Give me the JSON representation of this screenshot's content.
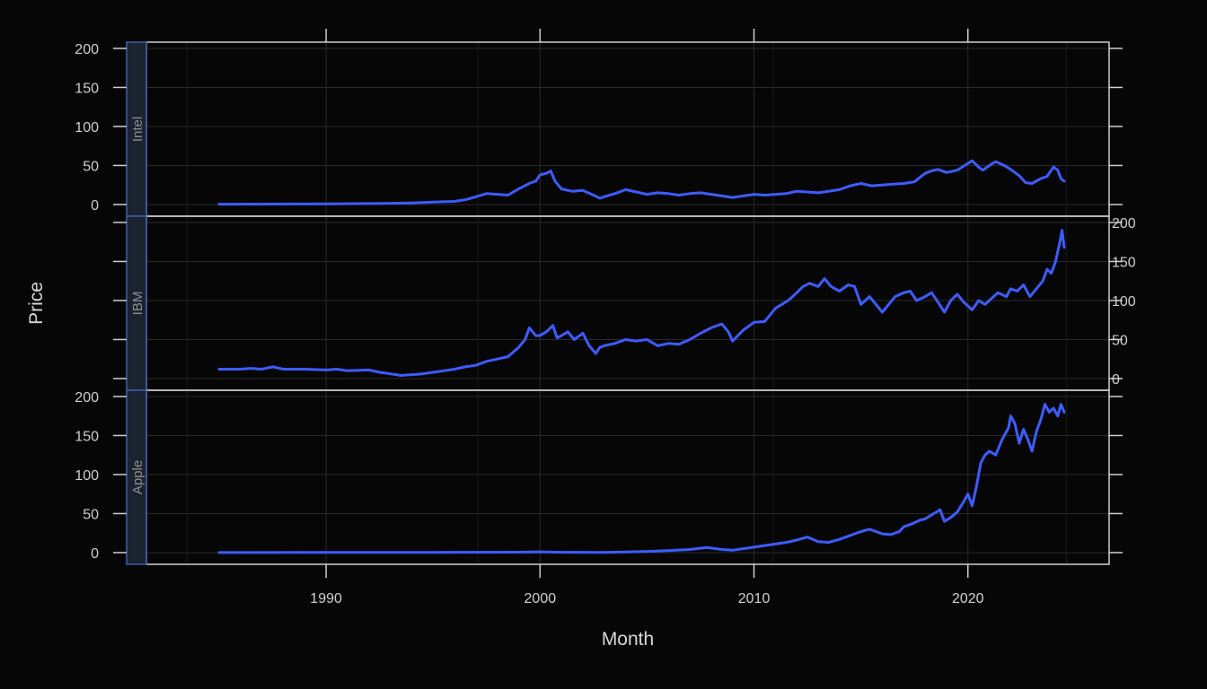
{
  "chart_data": {
    "type": "line",
    "xlabel": "Month",
    "ylabel": "Price",
    "x_ticks": [
      1990,
      2000,
      2010,
      2020
    ],
    "y_ticks": [
      0,
      50,
      100,
      150,
      200
    ],
    "xlim": [
      1981.6,
      2026.6
    ],
    "ylim": [
      -15,
      208
    ],
    "grid": true,
    "colors": {
      "line": "#3d5cff",
      "strip_fill": "#1b2330",
      "strip_border": "#3b5fa8",
      "panel_border": "#cfcfcf",
      "grid": "#2a2a2a",
      "background": "#060606"
    },
    "panels": [
      {
        "name": "Intel",
        "points": [
          [
            1985.0,
            0.4
          ],
          [
            1987.0,
            0.5
          ],
          [
            1990.0,
            0.8
          ],
          [
            1992.0,
            1.2
          ],
          [
            1993.0,
            1.5
          ],
          [
            1994.0,
            2.0
          ],
          [
            1995.0,
            3.0
          ],
          [
            1996.0,
            4.0
          ],
          [
            1996.5,
            6.0
          ],
          [
            1997.0,
            10.0
          ],
          [
            1997.5,
            14.0
          ],
          [
            1998.0,
            13.0
          ],
          [
            1998.5,
            12.0
          ],
          [
            1999.0,
            20.0
          ],
          [
            1999.5,
            27.0
          ],
          [
            1999.8,
            30.0
          ],
          [
            2000.0,
            38.0
          ],
          [
            2000.3,
            40.0
          ],
          [
            2000.5,
            43.0
          ],
          [
            2000.7,
            30.0
          ],
          [
            2001.0,
            20.0
          ],
          [
            2001.5,
            17.0
          ],
          [
            2002.0,
            18.0
          ],
          [
            2002.5,
            12.0
          ],
          [
            2002.8,
            8.0
          ],
          [
            2003.0,
            10.0
          ],
          [
            2003.5,
            14.0
          ],
          [
            2004.0,
            19.0
          ],
          [
            2004.5,
            16.0
          ],
          [
            2005.0,
            13.0
          ],
          [
            2005.5,
            15.0
          ],
          [
            2006.0,
            14.0
          ],
          [
            2006.5,
            12.0
          ],
          [
            2007.0,
            14.0
          ],
          [
            2007.5,
            15.0
          ],
          [
            2008.0,
            13.0
          ],
          [
            2008.5,
            11.0
          ],
          [
            2009.0,
            9.0
          ],
          [
            2009.5,
            11.0
          ],
          [
            2010.0,
            13.0
          ],
          [
            2010.5,
            12.0
          ],
          [
            2011.0,
            13.0
          ],
          [
            2011.5,
            14.0
          ],
          [
            2012.0,
            17.0
          ],
          [
            2012.5,
            16.0
          ],
          [
            2013.0,
            15.0
          ],
          [
            2013.5,
            17.0
          ],
          [
            2014.0,
            19.0
          ],
          [
            2014.5,
            24.0
          ],
          [
            2015.0,
            27.0
          ],
          [
            2015.5,
            24.0
          ],
          [
            2016.0,
            25.0
          ],
          [
            2016.5,
            26.0
          ],
          [
            2017.0,
            27.0
          ],
          [
            2017.5,
            29.0
          ],
          [
            2018.0,
            40.0
          ],
          [
            2018.3,
            43.0
          ],
          [
            2018.6,
            45.0
          ],
          [
            2019.0,
            41.0
          ],
          [
            2019.5,
            44.0
          ],
          [
            2019.9,
            51.0
          ],
          [
            2020.2,
            56.0
          ],
          [
            2020.5,
            48.0
          ],
          [
            2020.7,
            44.0
          ],
          [
            2021.0,
            50.0
          ],
          [
            2021.3,
            55.0
          ],
          [
            2021.7,
            50.0
          ],
          [
            2022.0,
            45.0
          ],
          [
            2022.4,
            37.0
          ],
          [
            2022.7,
            28.0
          ],
          [
            2023.0,
            27.0
          ],
          [
            2023.4,
            33.0
          ],
          [
            2023.7,
            36.0
          ],
          [
            2024.0,
            48.0
          ],
          [
            2024.2,
            44.0
          ],
          [
            2024.35,
            33.0
          ],
          [
            2024.5,
            30.0
          ]
        ]
      },
      {
        "name": "IBM",
        "points": [
          [
            1985.0,
            12.0
          ],
          [
            1986.0,
            12.0
          ],
          [
            1986.5,
            13.0
          ],
          [
            1987.0,
            12.0
          ],
          [
            1987.5,
            15.0
          ],
          [
            1988.0,
            12.0
          ],
          [
            1989.0,
            12.0
          ],
          [
            1990.0,
            11.0
          ],
          [
            1990.5,
            12.0
          ],
          [
            1991.0,
            10.0
          ],
          [
            1992.0,
            11.0
          ],
          [
            1992.5,
            8.0
          ],
          [
            1993.0,
            6.0
          ],
          [
            1993.5,
            4.0
          ],
          [
            1994.0,
            5.0
          ],
          [
            1994.5,
            6.0
          ],
          [
            1995.0,
            8.0
          ],
          [
            1995.5,
            10.0
          ],
          [
            1996.0,
            12.0
          ],
          [
            1996.5,
            15.0
          ],
          [
            1997.0,
            17.0
          ],
          [
            1997.5,
            22.0
          ],
          [
            1998.0,
            25.0
          ],
          [
            1998.5,
            28.0
          ],
          [
            1999.0,
            40.0
          ],
          [
            1999.3,
            50.0
          ],
          [
            1999.5,
            65.0
          ],
          [
            1999.8,
            55.0
          ],
          [
            2000.0,
            55.0
          ],
          [
            2000.3,
            60.0
          ],
          [
            2000.6,
            68.0
          ],
          [
            2000.8,
            52.0
          ],
          [
            2001.0,
            55.0
          ],
          [
            2001.3,
            60.0
          ],
          [
            2001.6,
            50.0
          ],
          [
            2002.0,
            58.0
          ],
          [
            2002.3,
            42.0
          ],
          [
            2002.6,
            32.0
          ],
          [
            2002.8,
            40.0
          ],
          [
            2003.0,
            42.0
          ],
          [
            2003.5,
            45.0
          ],
          [
            2004.0,
            50.0
          ],
          [
            2004.5,
            48.0
          ],
          [
            2005.0,
            50.0
          ],
          [
            2005.5,
            42.0
          ],
          [
            2006.0,
            45.0
          ],
          [
            2006.5,
            44.0
          ],
          [
            2007.0,
            50.0
          ],
          [
            2007.5,
            58.0
          ],
          [
            2008.0,
            65.0
          ],
          [
            2008.5,
            70.0
          ],
          [
            2008.8,
            60.0
          ],
          [
            2009.0,
            48.0
          ],
          [
            2009.5,
            62.0
          ],
          [
            2010.0,
            72.0
          ],
          [
            2010.5,
            73.0
          ],
          [
            2011.0,
            90.0
          ],
          [
            2011.3,
            95.0
          ],
          [
            2011.6,
            100.0
          ],
          [
            2012.0,
            110.0
          ],
          [
            2012.3,
            118.0
          ],
          [
            2012.6,
            122.0
          ],
          [
            2013.0,
            118.0
          ],
          [
            2013.3,
            128.0
          ],
          [
            2013.6,
            118.0
          ],
          [
            2014.0,
            112.0
          ],
          [
            2014.4,
            120.0
          ],
          [
            2014.7,
            118.0
          ],
          [
            2015.0,
            95.0
          ],
          [
            2015.4,
            105.0
          ],
          [
            2015.7,
            95.0
          ],
          [
            2016.0,
            85.0
          ],
          [
            2016.3,
            95.0
          ],
          [
            2016.6,
            105.0
          ],
          [
            2017.0,
            110.0
          ],
          [
            2017.3,
            112.0
          ],
          [
            2017.6,
            100.0
          ],
          [
            2018.0,
            105.0
          ],
          [
            2018.3,
            110.0
          ],
          [
            2018.6,
            98.0
          ],
          [
            2018.9,
            85.0
          ],
          [
            2019.2,
            100.0
          ],
          [
            2019.5,
            108.0
          ],
          [
            2019.8,
            98.0
          ],
          [
            2020.2,
            88.0
          ],
          [
            2020.5,
            100.0
          ],
          [
            2020.8,
            95.0
          ],
          [
            2021.0,
            100.0
          ],
          [
            2021.4,
            110.0
          ],
          [
            2021.8,
            105.0
          ],
          [
            2022.0,
            115.0
          ],
          [
            2022.3,
            112.0
          ],
          [
            2022.6,
            120.0
          ],
          [
            2022.9,
            105.0
          ],
          [
            2023.2,
            115.0
          ],
          [
            2023.5,
            125.0
          ],
          [
            2023.7,
            140.0
          ],
          [
            2023.9,
            135.0
          ],
          [
            2024.1,
            150.0
          ],
          [
            2024.3,
            175.0
          ],
          [
            2024.4,
            190.0
          ],
          [
            2024.5,
            168.0
          ]
        ]
      },
      {
        "name": "Apple",
        "points": [
          [
            1985.0,
            0.1
          ],
          [
            1990.0,
            0.3
          ],
          [
            1995.0,
            0.3
          ],
          [
            1999.0,
            0.5
          ],
          [
            2000.0,
            1.0
          ],
          [
            2001.0,
            0.4
          ],
          [
            2003.0,
            0.3
          ],
          [
            2004.0,
            0.8
          ],
          [
            2005.0,
            1.5
          ],
          [
            2006.0,
            2.5
          ],
          [
            2007.0,
            4.0
          ],
          [
            2007.8,
            6.5
          ],
          [
            2008.5,
            4.0
          ],
          [
            2009.0,
            3.0
          ],
          [
            2009.5,
            5.0
          ],
          [
            2010.0,
            7.0
          ],
          [
            2010.5,
            9.0
          ],
          [
            2011.0,
            11.0
          ],
          [
            2011.5,
            13.0
          ],
          [
            2012.0,
            16.0
          ],
          [
            2012.5,
            20.0
          ],
          [
            2013.0,
            14.0
          ],
          [
            2013.5,
            13.0
          ],
          [
            2014.0,
            17.0
          ],
          [
            2014.5,
            22.0
          ],
          [
            2015.0,
            27.0
          ],
          [
            2015.4,
            30.0
          ],
          [
            2015.8,
            26.0
          ],
          [
            2016.0,
            24.0
          ],
          [
            2016.4,
            23.0
          ],
          [
            2016.8,
            27.0
          ],
          [
            2017.0,
            33.0
          ],
          [
            2017.4,
            37.0
          ],
          [
            2017.8,
            42.0
          ],
          [
            2018.0,
            43.0
          ],
          [
            2018.4,
            50.0
          ],
          [
            2018.7,
            55.0
          ],
          [
            2018.9,
            40.0
          ],
          [
            2019.2,
            45.0
          ],
          [
            2019.5,
            52.0
          ],
          [
            2019.8,
            65.0
          ],
          [
            2020.0,
            75.0
          ],
          [
            2020.2,
            60.0
          ],
          [
            2020.4,
            85.0
          ],
          [
            2020.6,
            115.0
          ],
          [
            2020.8,
            125.0
          ],
          [
            2021.0,
            130.0
          ],
          [
            2021.3,
            125.0
          ],
          [
            2021.6,
            145.0
          ],
          [
            2021.9,
            160.0
          ],
          [
            2022.0,
            175.0
          ],
          [
            2022.2,
            165.0
          ],
          [
            2022.4,
            140.0
          ],
          [
            2022.6,
            158.0
          ],
          [
            2022.8,
            145.0
          ],
          [
            2023.0,
            130.0
          ],
          [
            2023.2,
            155.0
          ],
          [
            2023.4,
            170.0
          ],
          [
            2023.6,
            190.0
          ],
          [
            2023.8,
            180.0
          ],
          [
            2024.0,
            185.0
          ],
          [
            2024.2,
            175.0
          ],
          [
            2024.35,
            190.0
          ],
          [
            2024.5,
            180.0
          ]
        ]
      }
    ]
  }
}
